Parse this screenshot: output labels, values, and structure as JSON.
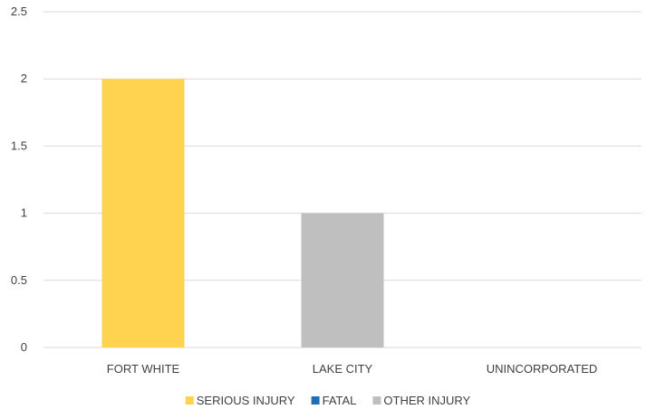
{
  "chart_data": {
    "type": "bar",
    "title": "",
    "xlabel": "",
    "ylabel": "",
    "categories": [
      "FORT WHITE",
      "LAKE CITY",
      "UNINCORPORATED"
    ],
    "series": [
      {
        "name": "SERIOUS INJURY",
        "color": "#FFD24F",
        "values": [
          2,
          0,
          0
        ]
      },
      {
        "name": "FATAL",
        "color": "#1F6FB5",
        "values": [
          0,
          0,
          0
        ]
      },
      {
        "name": "OTHER INJURY",
        "color": "#BFBFBF",
        "values": [
          0,
          1,
          0
        ]
      }
    ],
    "ylim": [
      0,
      2.5
    ],
    "yticks": [
      "0",
      "0.5",
      "1",
      "1.5",
      "2",
      "2.5"
    ],
    "grid": true,
    "legend_position": "bottom",
    "gridline_color": "#D9D9D9"
  }
}
